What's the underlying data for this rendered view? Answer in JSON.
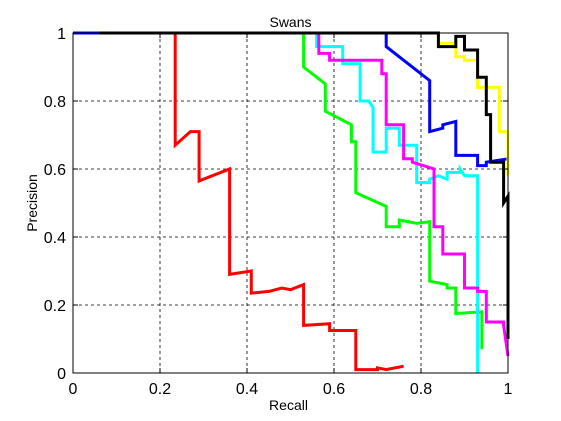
{
  "chart_data": {
    "type": "line",
    "title": "Swans",
    "xlabel": "Recall",
    "ylabel": "Precision",
    "xlim": [
      0,
      1
    ],
    "ylim": [
      0,
      1
    ],
    "xticks": [
      0,
      0.2,
      0.4,
      0.6,
      0.8,
      1
    ],
    "yticks": [
      0,
      0.2,
      0.4,
      0.6,
      0.8,
      1
    ],
    "xtick_labels": [
      "0",
      "0.2",
      "0.4",
      "0.6",
      "0.8",
      "1"
    ],
    "ytick_labels": [
      "0",
      "0.2",
      "0.4",
      "0.6",
      "0.8",
      "1"
    ],
    "grid": true,
    "series": [
      {
        "color": "#ff0000",
        "x": [
          0.235,
          0.235,
          0.27,
          0.29,
          0.29,
          0.36,
          0.36,
          0.41,
          0.41,
          0.45,
          0.48,
          0.5,
          0.53,
          0.53,
          0.59,
          0.59,
          0.65,
          0.65,
          0.7,
          0.7,
          0.72,
          0.76
        ],
        "y": [
          1.0,
          0.67,
          0.71,
          0.71,
          0.565,
          0.6,
          0.29,
          0.3,
          0.235,
          0.24,
          0.25,
          0.245,
          0.26,
          0.14,
          0.145,
          0.125,
          0.125,
          0.01,
          0.01,
          0.015,
          0.01,
          0.02
        ]
      },
      {
        "color": "#00ff00",
        "x": [
          0.53,
          0.53,
          0.58,
          0.58,
          0.64,
          0.64,
          0.65,
          0.65,
          0.72,
          0.72,
          0.75,
          0.75,
          0.79,
          0.82,
          0.82,
          0.86,
          0.86,
          0.88,
          0.88,
          0.94,
          0.94
        ],
        "y": [
          1.0,
          0.9,
          0.85,
          0.77,
          0.73,
          0.68,
          0.68,
          0.53,
          0.49,
          0.43,
          0.43,
          0.45,
          0.44,
          0.445,
          0.27,
          0.26,
          0.25,
          0.25,
          0.175,
          0.18,
          0.07
        ]
      },
      {
        "color": "#00ffff",
        "x": [
          0.56,
          0.56,
          0.62,
          0.62,
          0.66,
          0.66,
          0.68,
          0.69,
          0.69,
          0.72,
          0.72,
          0.75,
          0.75,
          0.79,
          0.79,
          0.82,
          0.82,
          0.84,
          0.86,
          0.86,
          0.89,
          0.89,
          0.9,
          0.93,
          0.93
        ],
        "y": [
          1.0,
          0.96,
          0.96,
          0.91,
          0.91,
          0.8,
          0.8,
          0.78,
          0.65,
          0.65,
          0.72,
          0.72,
          0.67,
          0.67,
          0.56,
          0.56,
          0.57,
          0.58,
          0.57,
          0.59,
          0.59,
          0.6,
          0.58,
          0.58,
          0.0
        ]
      },
      {
        "color": "#ff00ff",
        "x": [
          0.565,
          0.565,
          0.59,
          0.59,
          0.71,
          0.71,
          0.72,
          0.72,
          0.76,
          0.76,
          0.78,
          0.78,
          0.83,
          0.83,
          0.85,
          0.85,
          0.9,
          0.9,
          0.93,
          0.93,
          0.95,
          0.95,
          0.99,
          0.99,
          1.0
        ],
        "y": [
          1.0,
          0.94,
          0.94,
          0.92,
          0.92,
          0.88,
          0.88,
          0.73,
          0.73,
          0.63,
          0.63,
          0.62,
          0.6,
          0.43,
          0.43,
          0.35,
          0.35,
          0.25,
          0.25,
          0.24,
          0.24,
          0.15,
          0.15,
          0.14,
          0.05
        ]
      },
      {
        "color": "#0000ff",
        "x": [
          0.0,
          0.06,
          0.72,
          0.72,
          0.8,
          0.8,
          0.82,
          0.82,
          0.85,
          0.85,
          0.88,
          0.88,
          0.93,
          0.93,
          0.95,
          0.95,
          1.0
        ],
        "y": [
          1.0,
          1.0,
          1.0,
          0.96,
          0.88,
          0.88,
          0.86,
          0.71,
          0.72,
          0.73,
          0.74,
          0.64,
          0.64,
          0.61,
          0.61,
          0.62,
          0.63
        ]
      },
      {
        "color": "#ffff00",
        "x": [
          0.06,
          0.84,
          0.84,
          0.88,
          0.88,
          0.9,
          0.9,
          0.93,
          0.93,
          0.98,
          0.98,
          1.0,
          1.0
        ],
        "y": [
          1.0,
          1.0,
          0.97,
          0.97,
          0.93,
          0.93,
          0.92,
          0.92,
          0.84,
          0.84,
          0.71,
          0.71,
          0.58
        ]
      },
      {
        "color": "#000000",
        "x": [
          0.06,
          0.84,
          0.84,
          0.88,
          0.88,
          0.9,
          0.9,
          0.93,
          0.93,
          0.95,
          0.95,
          0.96,
          0.96,
          0.99,
          0.99,
          1.0,
          1.0
        ],
        "y": [
          1.0,
          1.0,
          0.96,
          0.96,
          0.99,
          0.99,
          0.95,
          0.95,
          0.87,
          0.87,
          0.76,
          0.76,
          0.62,
          0.62,
          0.5,
          0.52,
          0.1
        ]
      }
    ]
  }
}
